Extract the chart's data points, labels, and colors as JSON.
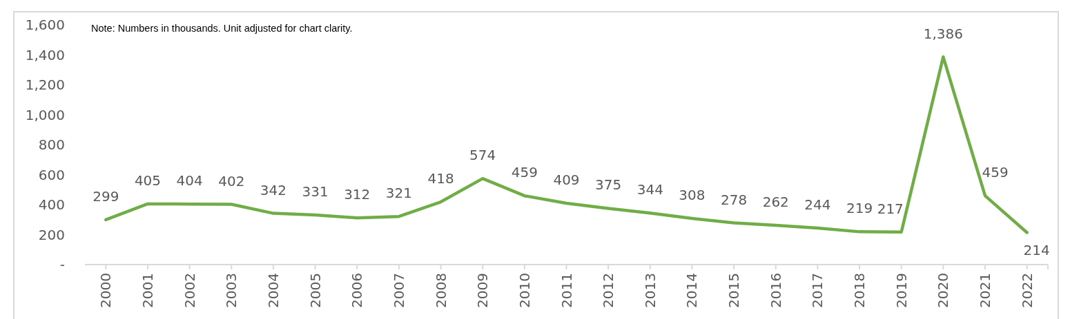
{
  "chart_data": {
    "type": "line",
    "annotations": [
      "Note: Numbers in thousands. Unit adjusted for chart clarity."
    ],
    "categories": [
      "2000",
      "2001",
      "2002",
      "2003",
      "2004",
      "2005",
      "2006",
      "2007",
      "2008",
      "2009",
      "2010",
      "2011",
      "2012",
      "2013",
      "2014",
      "2015",
      "2016",
      "2017",
      "2018",
      "2019",
      "2020",
      "2021",
      "2022"
    ],
    "series": [
      {
        "color": "#70ad47",
        "values": [
          299,
          405,
          404,
          402,
          342,
          331,
          312,
          321,
          418,
          574,
          459,
          409,
          375,
          344,
          308,
          278,
          262,
          244,
          219,
          217,
          1386,
          459,
          214
        ],
        "value_labels": [
          "299",
          "405",
          "404",
          "402",
          "342",
          "331",
          "312",
          "321",
          "418",
          "574",
          "459",
          "409",
          "375",
          "344",
          "308",
          "278",
          "262",
          "244",
          "219",
          "217",
          "1,386",
          "459",
          "214"
        ]
      }
    ],
    "ylim": [
      0,
      1600
    ],
    "yticks": [
      {
        "value": 0,
        "label": "-"
      },
      200,
      400,
      600,
      800,
      {
        "value": 1000,
        "label": "1,000"
      },
      {
        "value": 1200,
        "label": "1,200"
      },
      {
        "value": 1400,
        "label": "1,400"
      },
      {
        "value": 1600,
        "label": "1,600"
      }
    ]
  }
}
